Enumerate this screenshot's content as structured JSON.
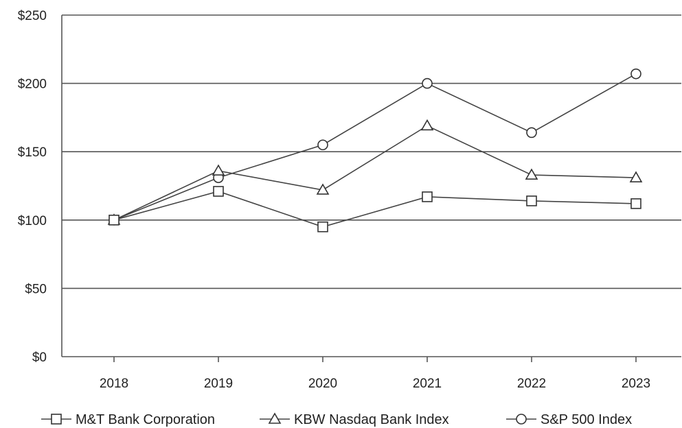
{
  "chart_data": {
    "type": "line",
    "categories": [
      "2018",
      "2019",
      "2020",
      "2021",
      "2022",
      "2023"
    ],
    "series": [
      {
        "name": "M&T Bank Corporation",
        "marker": "square",
        "values": [
          100,
          121,
          95,
          117,
          114,
          112
        ]
      },
      {
        "name": "KBW Nasdaq Bank Index",
        "marker": "triangle",
        "values": [
          100,
          136,
          122,
          169,
          133,
          131
        ]
      },
      {
        "name": "S&P 500 Index",
        "marker": "circle",
        "values": [
          100,
          131,
          155,
          200,
          164,
          207
        ]
      }
    ],
    "yticks": [
      0,
      50,
      100,
      150,
      200,
      250
    ],
    "ytick_labels": [
      "$0",
      "$50",
      "$100",
      "$150",
      "$200",
      "$250"
    ],
    "ylim": [
      0,
      250
    ],
    "grid": true,
    "legend_position": "bottom",
    "colors": {
      "line": "#444444",
      "grid": "#555555",
      "marker_fill": "#ffffff"
    }
  }
}
